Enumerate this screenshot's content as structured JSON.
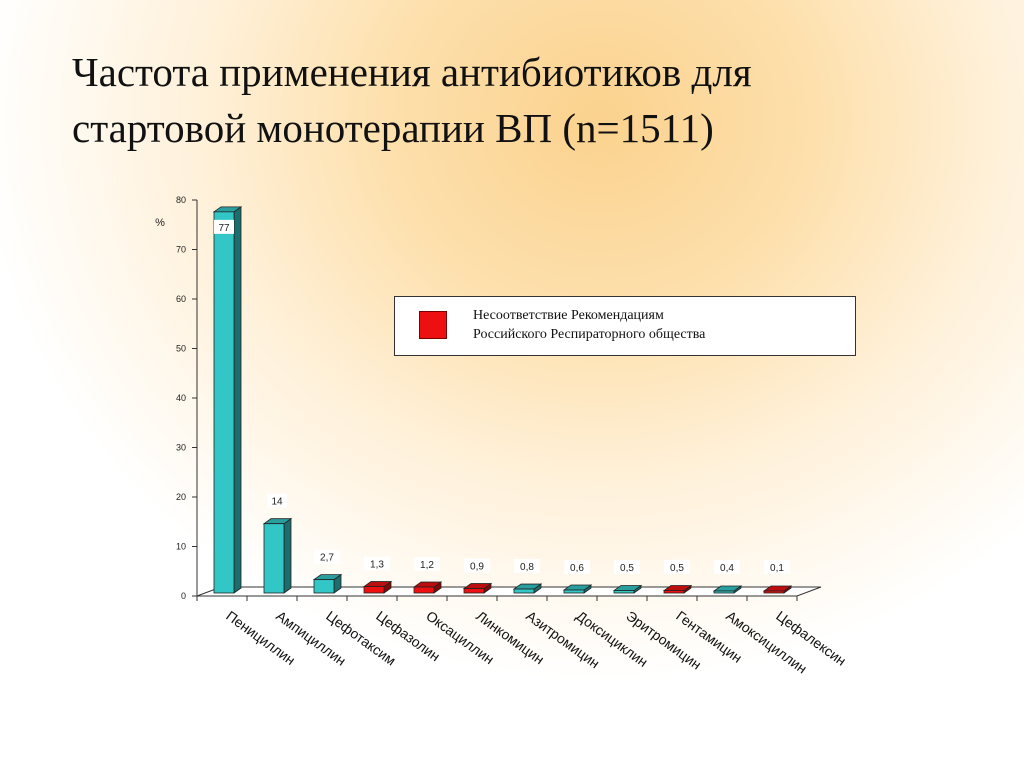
{
  "title": {
    "line1": "Частота применения антибиотиков для",
    "line2": "стартовой монотерапии ВП (n=1511)"
  },
  "legend": {
    "line1": "Несоответствие Рекомендациям",
    "line2": "Российского Респираторного общества",
    "color": "#ee1010"
  },
  "chart_data": {
    "type": "bar",
    "ylabel": "%",
    "ylim": [
      0,
      80
    ],
    "yticks": [
      0,
      10,
      20,
      30,
      40,
      50,
      60,
      70,
      80
    ],
    "grid": false,
    "legend_position": "right",
    "categories": [
      "Пенициллин",
      "Ампициллин",
      "Цефотаксим",
      "Цефазолин",
      "Оксациллин",
      "Линкомицин",
      "Азитромицин",
      "Доксициклин",
      "Эритромицин",
      "Гентамицин",
      "Амоксициллин",
      "Цефалексин"
    ],
    "values": [
      77,
      14,
      2.7,
      1.3,
      1.2,
      0.9,
      0.8,
      0.6,
      0.5,
      0.5,
      0.4,
      0.1
    ],
    "value_labels": [
      "77",
      "14",
      "2,7",
      "1,3",
      "1,2",
      "0,9",
      "0,8",
      "0,6",
      "0,5",
      "0,5",
      "0,4",
      "0,1"
    ],
    "nonconforming": [
      false,
      false,
      false,
      true,
      true,
      true,
      false,
      false,
      false,
      true,
      false,
      true
    ],
    "colors": {
      "normal": "#33c6c6",
      "nonconforming": "#ee1010"
    }
  }
}
